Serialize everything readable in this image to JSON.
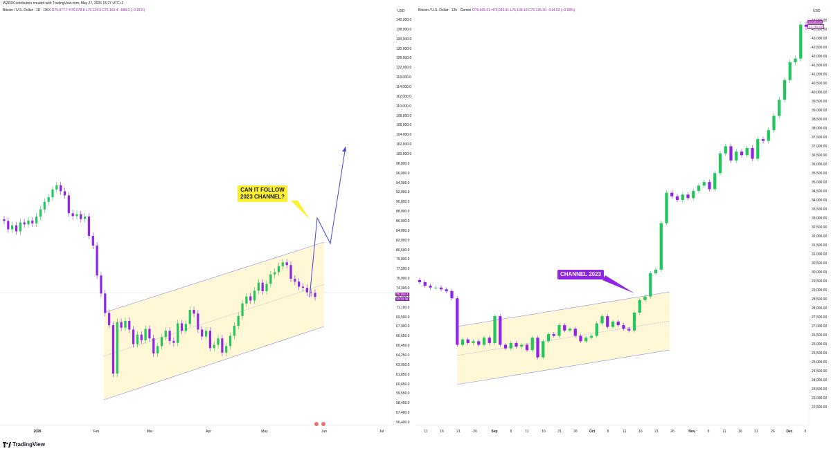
{
  "header": "WZRDContributors created with TradingView.com, May 27, 2026 15:27 UTC+2",
  "brand": "TradingView",
  "left": {
    "title": "Bitcoin / U.S. Dollar · 1D · OKX",
    "ohlc": "O75,877.7 H76,078.8 L75,124.9 C75,163.4 −689.0 (−0.91%)",
    "currency": "USD",
    "annotation": "CAN IT FOLLOW\n2023 CHANNEL?",
    "price_label": "75,163.4",
    "price_time": "10:32:38",
    "y_ticks": [
      "142,000.0",
      "138,000.0",
      "134,000.0",
      "130,000.0",
      "126,000.0",
      "122,000.0",
      "118,000.0",
      "114,000.0",
      "112,000.0",
      "110,000.0",
      "108,000.0",
      "106,000.0",
      "104,000.0",
      "102,000.0",
      "100,000.0",
      "98,000.0",
      "96,000.0",
      "94,000.0",
      "92,000.0",
      "90,000.0",
      "88,000.0",
      "86,000.0",
      "84,000.0",
      "82,000.0",
      "80,500.0",
      "79,000.0",
      "77,500.0",
      "75,900.0",
      "74,300.0",
      "72,700.0",
      "71,100.0",
      "69,500.0",
      "67,900.0",
      "66,650.0",
      "65,450.0",
      "64,250.0",
      "63,050.0",
      "61,850.0",
      "60,650.0",
      "59,550.0",
      "58,450.0",
      "57,400.0",
      "56,400.0"
    ],
    "x_ticks": [
      {
        "label": "2026",
        "bold": true
      },
      {
        "label": "Feb",
        "bold": false
      },
      {
        "label": "Mar",
        "bold": false
      },
      {
        "label": "Apr",
        "bold": false
      },
      {
        "label": "May",
        "bold": false
      },
      {
        "label": "Jun",
        "bold": false
      },
      {
        "label": "Jul",
        "bold": false
      }
    ]
  },
  "right": {
    "title": "Bitcoin / U.S. Dollar · 12h · Gemini",
    "ohlc": "O75,665.61 H76,035.91 L75,108.18 C75,135.30 −514.53 (−0.68%)",
    "currency": "USD",
    "annotation": "CHANNEL 2023",
    "price_label": "44,000.00",
    "price_label2": "43,782.00",
    "y_ticks": [
      "44,000.00",
      "43,500.00",
      "43,000.00",
      "42,500.00",
      "42,000.00",
      "41,500.00",
      "41,000.00",
      "40,500.00",
      "40,000.00",
      "39,500.00",
      "39,000.00",
      "38,500.00",
      "38,000.00",
      "37,500.00",
      "37,000.00",
      "36,500.00",
      "36,000.00",
      "35,500.00",
      "35,000.00",
      "34,500.00",
      "34,000.00",
      "33,500.00",
      "33,000.00",
      "32,500.00",
      "32,000.00",
      "31,500.00",
      "31,000.00",
      "30,500.00",
      "30,000.00",
      "29,500.00",
      "29,000.00",
      "28,500.00",
      "28,000.00",
      "27,500.00",
      "27,000.00",
      "26,500.00",
      "26,000.00",
      "25,500.00",
      "25,000.00",
      "24,500.00",
      "24,000.00",
      "23,500.00",
      "23,000.00",
      "22,500.00"
    ],
    "x_ticks": [
      {
        "label": "11",
        "bold": false
      },
      {
        "label": "16",
        "bold": false
      },
      {
        "label": "21",
        "bold": false
      },
      {
        "label": "26",
        "bold": false
      },
      {
        "label": "Sep",
        "bold": true
      },
      {
        "label": "6",
        "bold": false
      },
      {
        "label": "11",
        "bold": false
      },
      {
        "label": "16",
        "bold": false
      },
      {
        "label": "21",
        "bold": false
      },
      {
        "label": "26",
        "bold": false
      },
      {
        "label": "Oct",
        "bold": true
      },
      {
        "label": "6",
        "bold": false
      },
      {
        "label": "11",
        "bold": false
      },
      {
        "label": "16",
        "bold": false
      },
      {
        "label": "21",
        "bold": false
      },
      {
        "label": "26",
        "bold": false
      },
      {
        "label": "Nov",
        "bold": true
      },
      {
        "label": "6",
        "bold": false
      },
      {
        "label": "11",
        "bold": false
      },
      {
        "label": "16",
        "bold": false
      },
      {
        "label": "21",
        "bold": false
      },
      {
        "label": "26",
        "bold": false
      },
      {
        "label": "Dec",
        "bold": true
      },
      {
        "label": "6",
        "bold": false
      }
    ]
  },
  "colors": {
    "up": "#22c55e",
    "down": "#8e24e6",
    "channel_fill": "#fff7d6",
    "projection": "#3f3fd8",
    "note_yellow": "#fff02f",
    "note_purple": "#8e24e6"
  },
  "chart_data": [
    {
      "type": "candlestick",
      "title": "Bitcoin / U.S. Dollar · 1D · OKX",
      "yscale": "log",
      "ylim": [
        56400,
        142000
      ],
      "x": [
        "2026",
        "Feb",
        "Mar",
        "Apr",
        "May",
        "Jun",
        "Jul"
      ],
      "closes": [
        89500,
        87800,
        88600,
        87400,
        89200,
        88800,
        89600,
        89000,
        90400,
        91900,
        93500,
        94500,
        96200,
        97100,
        95800,
        94900,
        91100,
        90500,
        90900,
        89900,
        90400,
        86500,
        84600,
        79000,
        75800,
        72500,
        70500,
        63100,
        71000,
        70100,
        71200,
        69800,
        67500,
        69000,
        68100,
        69900,
        68400,
        66100,
        67200,
        68600,
        69600,
        68000,
        67700,
        70800,
        69600,
        70700,
        73000,
        72400,
        69800,
        68700,
        69600,
        66900,
        67400,
        68400,
        66200,
        67200,
        68800,
        70400,
        72000,
        74100,
        75300,
        74600,
        76300,
        77700,
        76200,
        77500,
        79200,
        79600,
        80700,
        81400,
        80900,
        78400,
        77900,
        77000,
        76800,
        76000,
        75900,
        75200
      ]
    },
    {
      "type": "candlestick",
      "title": "Bitcoin / U.S. Dollar · 12h · Gemini",
      "ylim": [
        22500,
        44000
      ],
      "x": [
        "11",
        "16",
        "21",
        "26",
        "Sep",
        "6",
        "11",
        "16",
        "21",
        "26",
        "Oct",
        "6",
        "11",
        "16",
        "21",
        "26",
        "Nov",
        "6",
        "11",
        "16",
        "21",
        "26",
        "Dec",
        "6"
      ],
      "closes": [
        29500,
        29300,
        29200,
        29200,
        29100,
        29000,
        28600,
        26000,
        26300,
        26100,
        26200,
        26000,
        26400,
        26100,
        27600,
        26000,
        25800,
        26100,
        25900,
        26000,
        25700,
        26400,
        25300,
        26200,
        26600,
        26500,
        27100,
        26800,
        26900,
        26500,
        26200,
        26400,
        26500,
        27200,
        27600,
        27000,
        27300,
        27100,
        26900,
        26800,
        27800,
        28500,
        28700,
        30000,
        30200,
        32800,
        34500,
        34300,
        34100,
        34400,
        34200,
        34600,
        34900,
        35100,
        34700,
        35600,
        36700,
        37100,
        36300,
        36800,
        36600,
        37000,
        36400,
        37500,
        37400,
        38000,
        38800,
        39700,
        40800,
        41800,
        42000,
        43900,
        43782
      ]
    }
  ]
}
